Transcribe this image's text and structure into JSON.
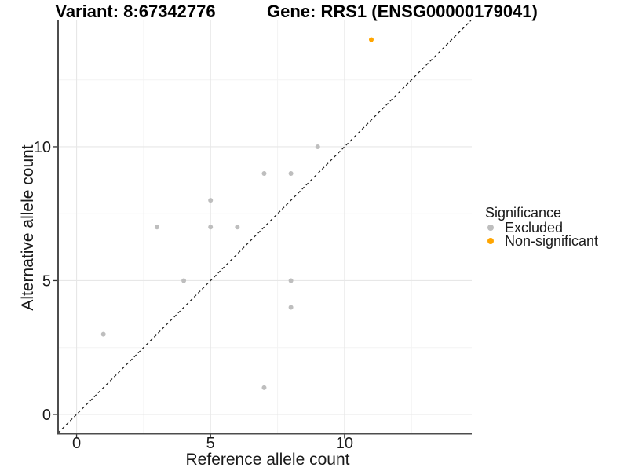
{
  "titles": {
    "variant": "Variant: 8:67342776",
    "gene": "Gene: RRS1 (ENSG00000179041)"
  },
  "chart_data": {
    "type": "scatter",
    "xlabel": "Reference allele count",
    "ylabel": "Alternative allele count",
    "xlim": [
      -0.69,
      14.75
    ],
    "ylim": [
      -0.72,
      14.72
    ],
    "x_ticks": [
      0,
      5,
      10
    ],
    "y_ticks": [
      0,
      5,
      10
    ],
    "x_minor_ticks": [
      2.5,
      7.5,
      12.5
    ],
    "y_minor_ticks": [
      2.5,
      7.5,
      12.5
    ],
    "grid": "major and minor gridlines on white panel",
    "identity_line": {
      "equation": "y = x",
      "style": "dashed",
      "color": "#1a1a1a"
    },
    "legend": {
      "title": "Significance",
      "position": "right"
    },
    "series": [
      {
        "name": "Excluded",
        "color": "#BEBEBE",
        "points": [
          [
            1,
            3
          ],
          [
            3,
            7
          ],
          [
            4,
            5
          ],
          [
            5,
            7
          ],
          [
            5,
            8
          ],
          [
            6,
            7
          ],
          [
            7,
            1
          ],
          [
            7,
            9
          ],
          [
            8,
            4
          ],
          [
            8,
            5
          ],
          [
            8,
            9
          ],
          [
            9,
            10
          ]
        ]
      },
      {
        "name": "Non-significant",
        "color": "#FFA500",
        "points": [
          [
            11,
            14
          ]
        ]
      }
    ]
  }
}
